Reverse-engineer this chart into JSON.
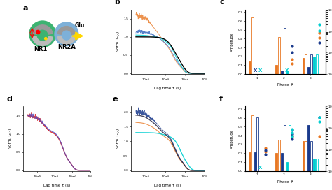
{
  "colors": {
    "orange": "#E87722",
    "blue_dark": "#1A3A8C",
    "blue_mid": "#4472C4",
    "cyan": "#00CED1",
    "black": "#000000",
    "red": "#CC0000",
    "purple_blue": "#6666BB"
  },
  "panel_c_bars": {
    "phase1": [
      0.14,
      0.64,
      0.0,
      0.0,
      0.0,
      0.0
    ],
    "phase2": [
      0.1,
      0.42,
      0.04,
      0.52,
      0.04,
      0.0
    ],
    "phase3": [
      0.18,
      0.22,
      0.08,
      0.22,
      0.2,
      0.22
    ]
  },
  "panel_f_bars": {
    "phase1": [
      0.21,
      0.63,
      0.21,
      0.61,
      0.0,
      0.0
    ],
    "phase2": [
      0.2,
      0.35,
      0.2,
      0.52,
      0.1,
      0.52
    ],
    "phase3": [
      0.34,
      0.34,
      0.52,
      0.34,
      0.14,
      0.14
    ]
  },
  "c_tau_scatter": {
    "phase2_orange": [
      3e-05,
      5e-05
    ],
    "phase2_blue": [
      0.0001,
      0.0002
    ],
    "phase3_orange": [
      0.0005,
      0.0008
    ],
    "phase3_blue": [
      0.0003
    ],
    "phase3_cyan": [
      0.001,
      0.002
    ]
  },
  "f_tau_scatter": {
    "phase1_orange": [
      8e-05,
      0.00012
    ],
    "phase1_blue": [
      6e-05,
      9e-05
    ],
    "phase2_orange": [
      0.0004
    ],
    "phase2_blue": [
      0.0003,
      0.0005,
      0.0008
    ],
    "phase2_cyan": [
      0.0004,
      0.0006,
      0.0009
    ],
    "phase3_orange": [
      0.0004
    ],
    "phase3_blue": [
      0.003
    ],
    "phase3_cyan": [
      0.002,
      0.003
    ]
  }
}
